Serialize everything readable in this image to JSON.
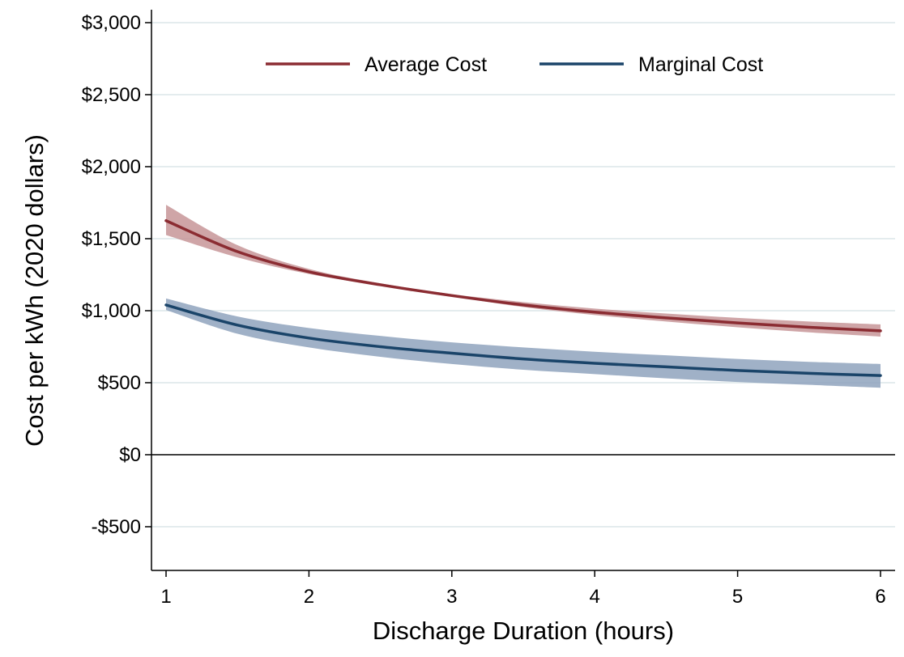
{
  "chart_data": {
    "type": "line",
    "title": "",
    "xlabel": "Discharge Duration (hours)",
    "ylabel": "Cost per kWh (2020 dollars)",
    "xlim": [
      1,
      6
    ],
    "ylim": [
      -800,
      3050
    ],
    "x_ticks": [
      1,
      2,
      3,
      4,
      5,
      6
    ],
    "x_tick_labels": [
      "1",
      "2",
      "3",
      "4",
      "5",
      "6"
    ],
    "y_ticks": [
      -500,
      0,
      500,
      1000,
      1500,
      2000,
      2500,
      3000
    ],
    "y_tick_labels": [
      "-$500",
      "$0",
      "$500",
      "$1,000",
      "$1,500",
      "$2,000",
      "$2,500",
      "$3,000"
    ],
    "grid": true,
    "legend_position": "top",
    "x": [
      1,
      1.5,
      2,
      2.5,
      3,
      3.5,
      4,
      4.5,
      5,
      5.5,
      6
    ],
    "series": [
      {
        "name": "Average Cost",
        "color": "#8b2c32",
        "band_color": "#c79598",
        "values": [
          1625,
          1410,
          1270,
          1180,
          1105,
          1040,
          990,
          950,
          915,
          885,
          860
        ],
        "lower": [
          1525,
          1370,
          1255,
          1175,
          1100,
          1025,
          970,
          925,
          885,
          850,
          820
        ],
        "upper": [
          1735,
          1455,
          1290,
          1190,
          1115,
          1060,
          1015,
          980,
          950,
          925,
          905
        ]
      },
      {
        "name": "Marginal Cost",
        "color": "#1a4469",
        "band_color": "#8fa3bd",
        "values": [
          1040,
          900,
          810,
          750,
          705,
          665,
          635,
          610,
          585,
          565,
          550
        ],
        "lower": [
          1005,
          840,
          745,
          680,
          630,
          590,
          560,
          530,
          505,
          485,
          465
        ],
        "upper": [
          1085,
          960,
          880,
          825,
          780,
          745,
          715,
          690,
          665,
          645,
          630
        ]
      }
    ]
  }
}
